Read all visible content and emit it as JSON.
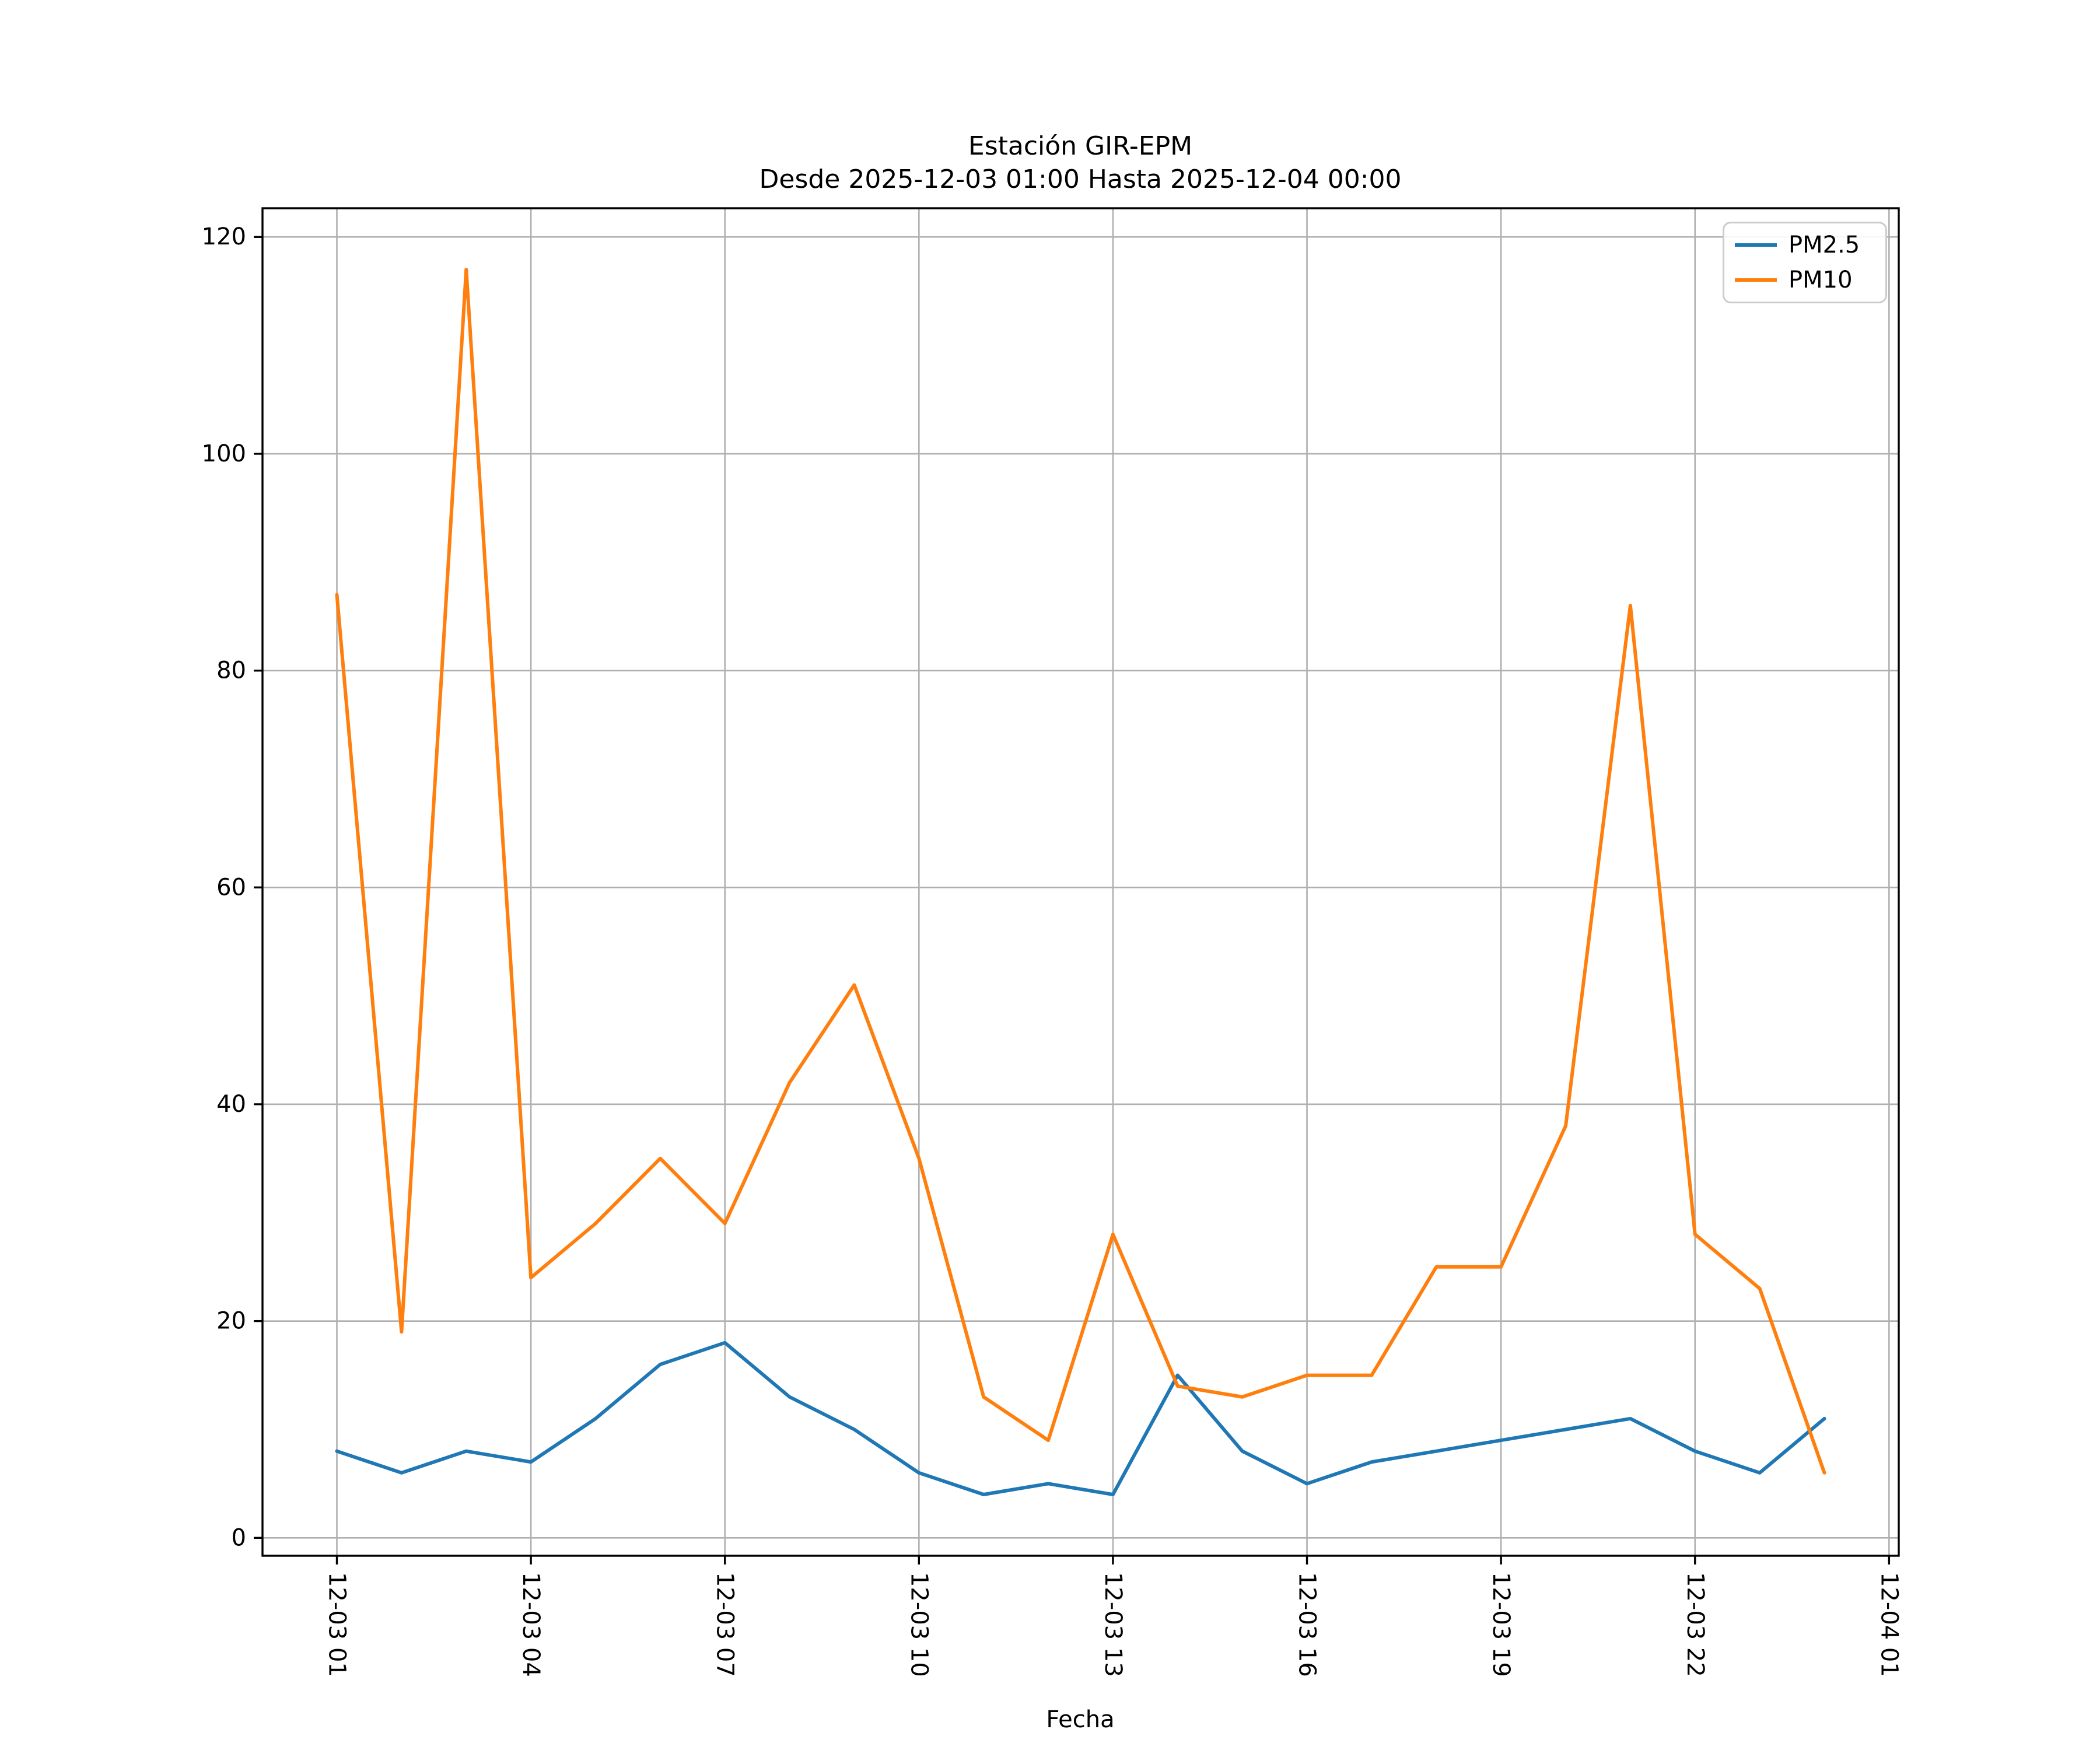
{
  "chart_data": {
    "type": "line",
    "title": "Estación GIR-EPM",
    "subtitle": "Desde 2025-12-03 01:00 Hasta 2025-12-04 00:00",
    "xlabel": "Fecha",
    "ylabel": "",
    "x_hours": [
      1,
      2,
      3,
      4,
      5,
      6,
      7,
      8,
      9,
      10,
      11,
      12,
      13,
      14,
      15,
      16,
      17,
      18,
      19,
      20,
      21,
      22,
      23,
      24
    ],
    "series": [
      {
        "name": "PM2.5",
        "color": "#1f77b4",
        "values": [
          8,
          6,
          8,
          7,
          11,
          16,
          18,
          13,
          10,
          6,
          4,
          5,
          4,
          15,
          8,
          5,
          7,
          8,
          9,
          10,
          11,
          8,
          6,
          11
        ]
      },
      {
        "name": "PM10",
        "color": "#ff7f0e",
        "values": [
          87,
          19,
          117,
          24,
          29,
          35,
          29,
          42,
          51,
          35,
          13,
          9,
          28,
          14,
          13,
          15,
          15,
          25,
          25,
          38,
          86,
          28,
          23,
          6
        ]
      }
    ],
    "xticks": {
      "hours": [
        1,
        4,
        7,
        10,
        13,
        16,
        19,
        22,
        25
      ],
      "labels": [
        "12-03 01",
        "12-03 04",
        "12-03 07",
        "12-03 10",
        "12-03 13",
        "12-03 16",
        "12-03 19",
        "12-03 22",
        "12-04 01"
      ]
    },
    "yticks": [
      0,
      20,
      40,
      60,
      80,
      100,
      120
    ],
    "xlim": [
      -0.15,
      25.15
    ],
    "ylim": [
      -1.65,
      122.65
    ],
    "grid": true,
    "grid_color": "#b0b0b0",
    "spine_color": "#000000",
    "legend_position": "upper right"
  }
}
